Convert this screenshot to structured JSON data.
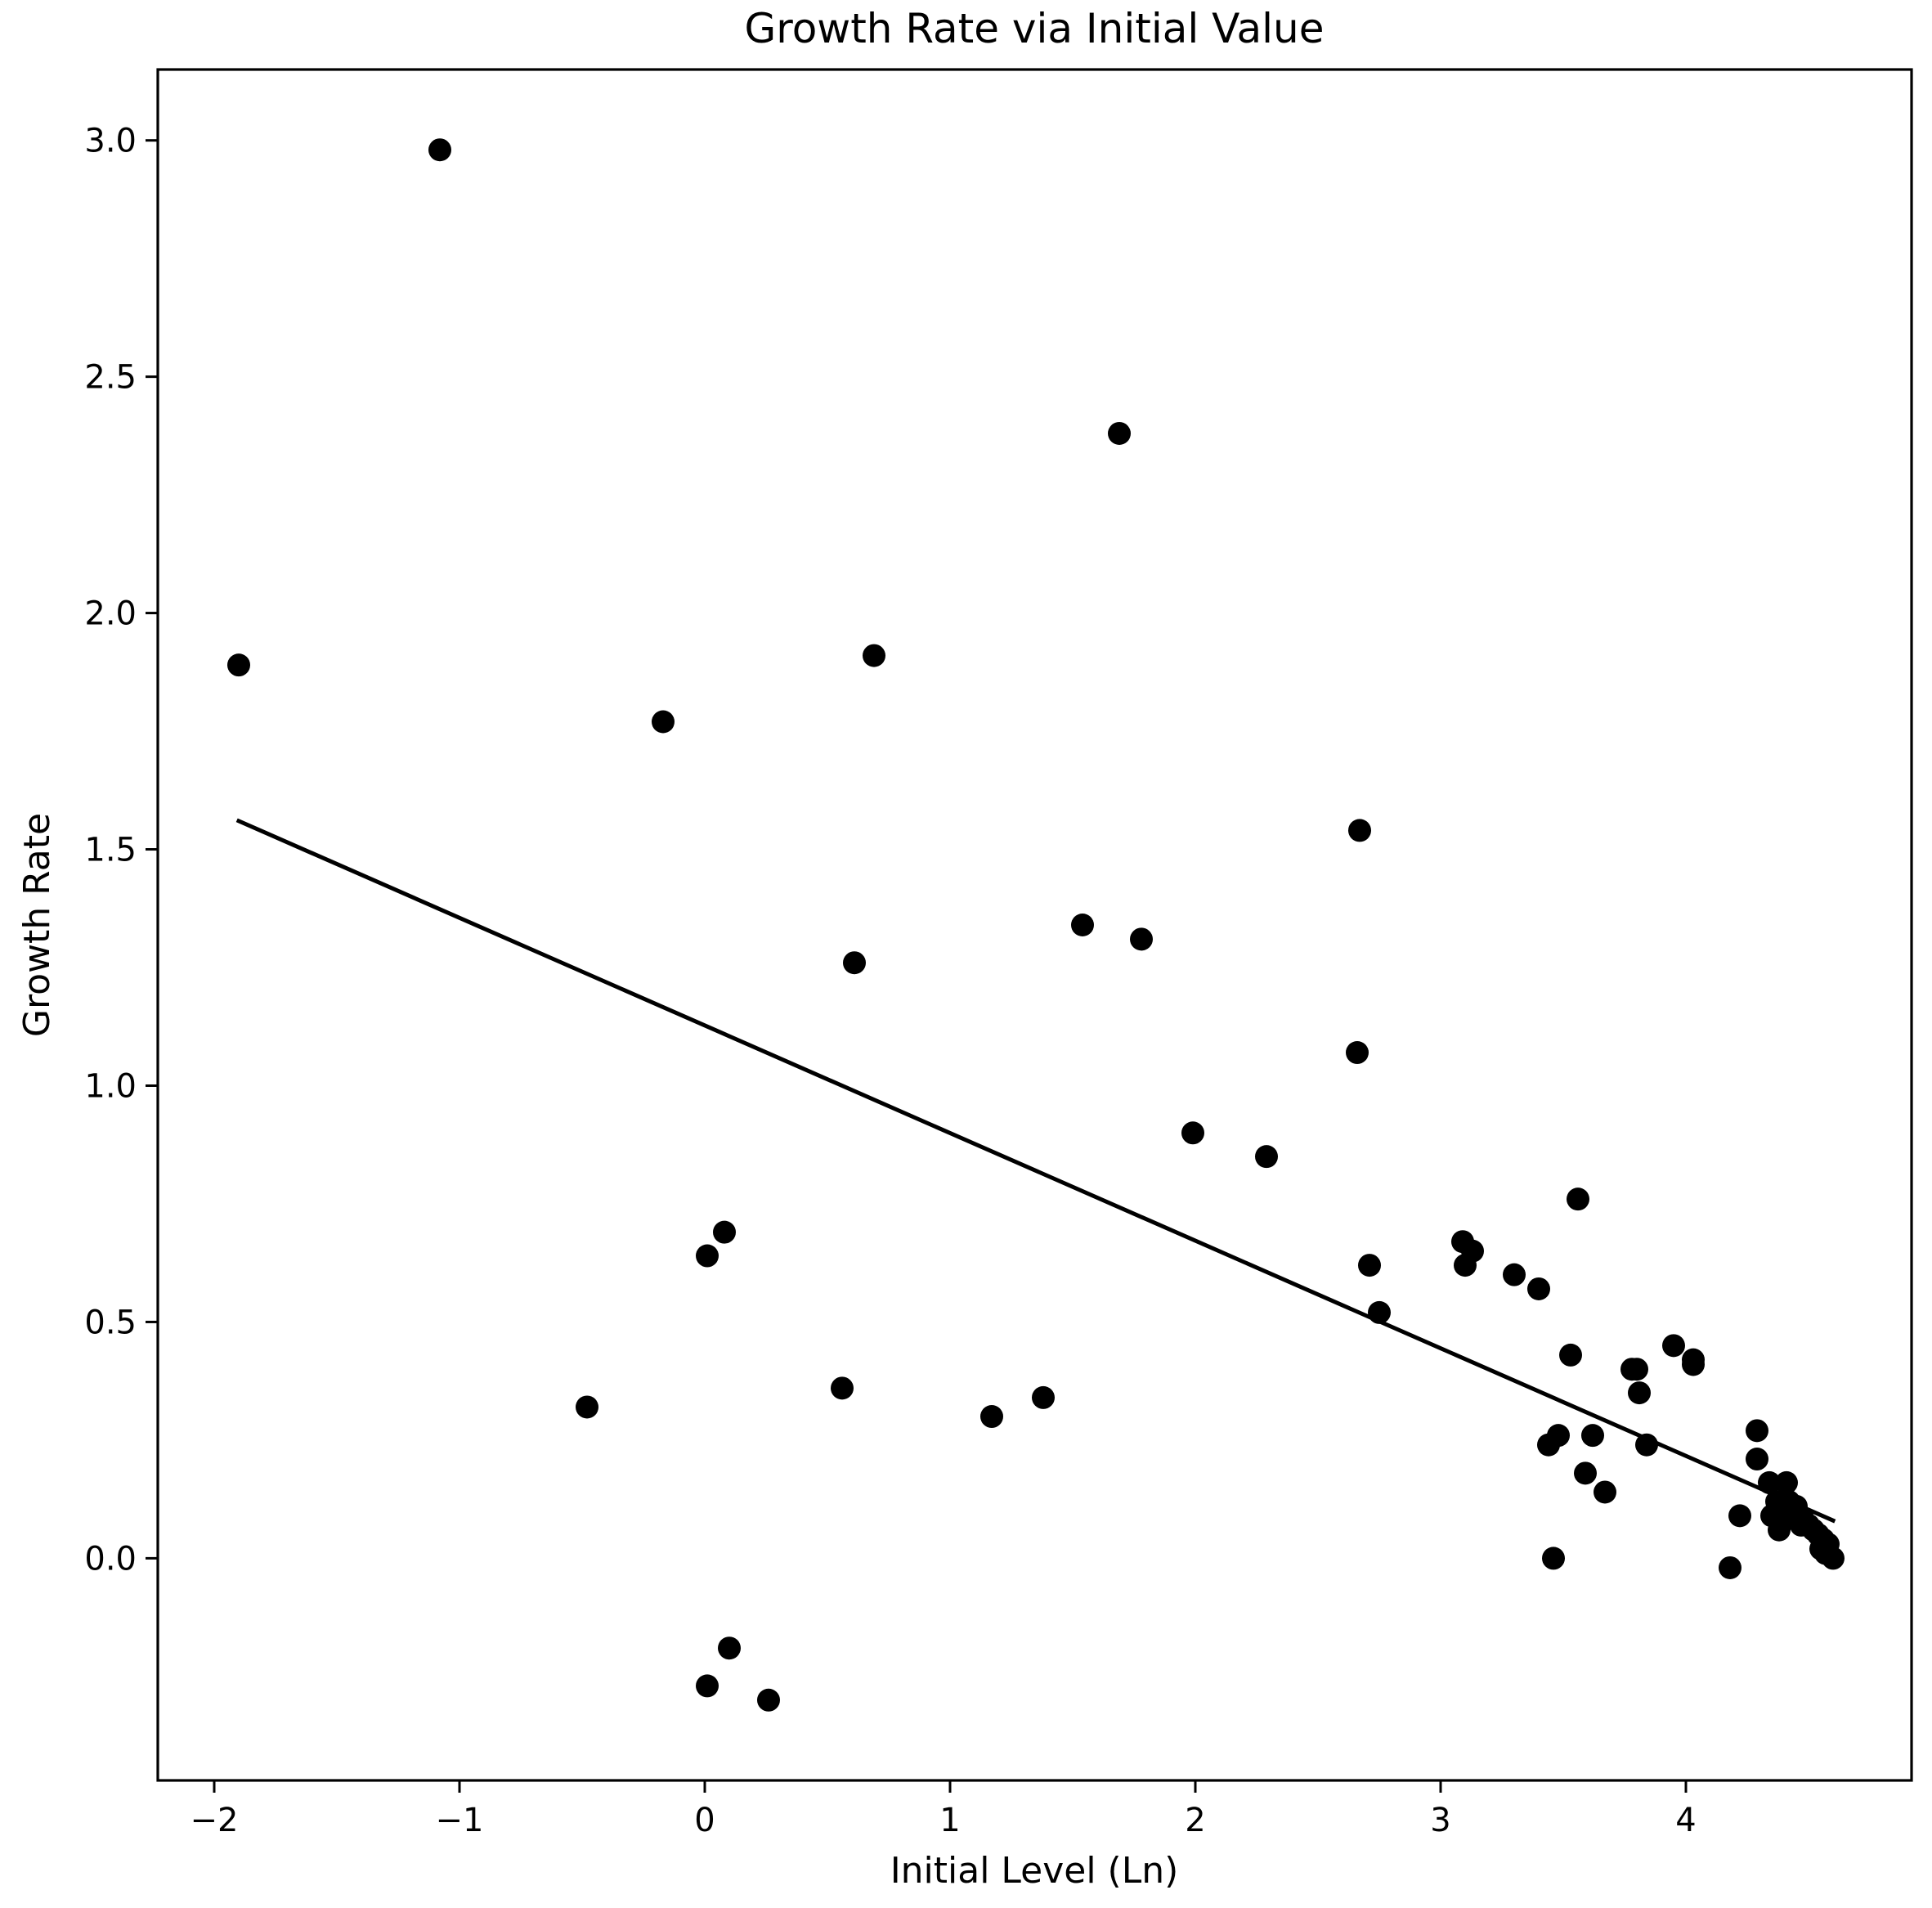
{
  "chart_data": {
    "type": "scatter",
    "title": "Growth Rate via Initial Value",
    "xlabel": "Initial Level (Ln)",
    "ylabel": "Growth Rate",
    "xlim": [
      -2.23,
      4.92
    ],
    "ylim": [
      -0.47,
      3.15
    ],
    "xticks": [
      -2,
      -1,
      0,
      1,
      2,
      3,
      4
    ],
    "xtick_labels": [
      "−2",
      "−1",
      "0",
      "1",
      "2",
      "3",
      "4"
    ],
    "yticks": [
      0.0,
      0.5,
      1.0,
      1.5,
      2.0,
      2.5,
      3.0
    ],
    "ytick_labels": [
      "0.0",
      "0.5",
      "1.0",
      "1.5",
      "2.0",
      "2.5",
      "3.0"
    ],
    "grid": false,
    "legend": "none",
    "marker_color": "#000000",
    "points": [
      {
        "x": -1.9,
        "y": 1.89
      },
      {
        "x": -1.08,
        "y": 2.98
      },
      {
        "x": -0.17,
        "y": 1.77
      },
      {
        "x": -0.48,
        "y": 0.32
      },
      {
        "x": 0.01,
        "y": 0.64
      },
      {
        "x": 0.08,
        "y": 0.69
      },
      {
        "x": 0.01,
        "y": -0.27
      },
      {
        "x": 0.1,
        "y": -0.19
      },
      {
        "x": 0.26,
        "y": -0.3
      },
      {
        "x": 0.56,
        "y": 0.36
      },
      {
        "x": 0.61,
        "y": 1.26
      },
      {
        "x": 0.69,
        "y": 1.91
      },
      {
        "x": 1.17,
        "y": 0.3
      },
      {
        "x": 1.38,
        "y": 0.34
      },
      {
        "x": 1.54,
        "y": 1.34
      },
      {
        "x": 1.69,
        "y": 2.38
      },
      {
        "x": 1.78,
        "y": 1.31
      },
      {
        "x": 1.99,
        "y": 0.9
      },
      {
        "x": 2.29,
        "y": 0.85
      },
      {
        "x": 2.66,
        "y": 1.07
      },
      {
        "x": 2.67,
        "y": 1.54
      },
      {
        "x": 2.71,
        "y": 0.62
      },
      {
        "x": 2.75,
        "y": 0.52
      },
      {
        "x": 3.09,
        "y": 0.67
      },
      {
        "x": 3.1,
        "y": 0.62
      },
      {
        "x": 3.13,
        "y": 0.65
      },
      {
        "x": 3.3,
        "y": 0.6
      },
      {
        "x": 3.4,
        "y": 0.57
      },
      {
        "x": 3.44,
        "y": 0.24
      },
      {
        "x": 3.46,
        "y": 0.0
      },
      {
        "x": 3.48,
        "y": 0.26
      },
      {
        "x": 3.53,
        "y": 0.43
      },
      {
        "x": 3.56,
        "y": 0.76
      },
      {
        "x": 3.59,
        "y": 0.18
      },
      {
        "x": 3.62,
        "y": 0.26
      },
      {
        "x": 3.67,
        "y": 0.14
      },
      {
        "x": 3.78,
        "y": 0.4
      },
      {
        "x": 3.8,
        "y": 0.4
      },
      {
        "x": 3.81,
        "y": 0.35
      },
      {
        "x": 3.84,
        "y": 0.24
      },
      {
        "x": 3.95,
        "y": 0.45
      },
      {
        "x": 4.03,
        "y": 0.42
      },
      {
        "x": 4.03,
        "y": 0.41
      },
      {
        "x": 4.18,
        "y": -0.02
      },
      {
        "x": 4.22,
        "y": 0.09
      },
      {
        "x": 4.29,
        "y": 0.27
      },
      {
        "x": 4.29,
        "y": 0.21
      },
      {
        "x": 4.34,
        "y": 0.16
      },
      {
        "x": 4.35,
        "y": 0.09
      },
      {
        "x": 4.37,
        "y": 0.12
      },
      {
        "x": 4.38,
        "y": 0.06
      },
      {
        "x": 4.39,
        "y": 0.1
      },
      {
        "x": 4.4,
        "y": 0.08
      },
      {
        "x": 4.41,
        "y": 0.16
      },
      {
        "x": 4.42,
        "y": 0.12
      },
      {
        "x": 4.44,
        "y": 0.09
      },
      {
        "x": 4.45,
        "y": 0.11
      },
      {
        "x": 4.47,
        "y": 0.07
      },
      {
        "x": 4.48,
        "y": 0.08
      },
      {
        "x": 4.5,
        "y": 0.07
      },
      {
        "x": 4.52,
        "y": 0.06
      },
      {
        "x": 4.54,
        "y": 0.05
      },
      {
        "x": 4.55,
        "y": 0.02
      },
      {
        "x": 4.56,
        "y": 0.04
      },
      {
        "x": 4.57,
        "y": 0.01
      },
      {
        "x": 4.58,
        "y": 0.03
      },
      {
        "x": 4.6,
        "y": 0.0
      }
    ],
    "fit_line": {
      "x": [
        -1.9,
        4.6
      ],
      "y": [
        1.56,
        0.08
      ],
      "color": "#000000"
    }
  }
}
